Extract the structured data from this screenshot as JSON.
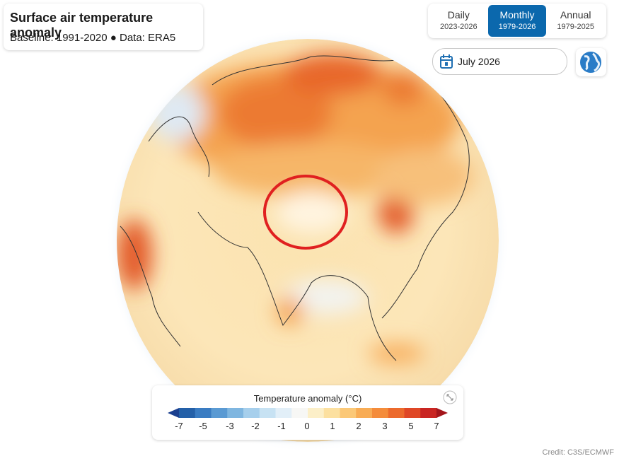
{
  "header": {
    "title": "Surface air temperature anomaly",
    "subtitle": "Baseline: 1991-2020 ● Data: ERA5"
  },
  "tabs": [
    {
      "label": "Daily",
      "range": "2023-2026",
      "selected": false
    },
    {
      "label": "Monthly",
      "range": "1979-2026",
      "selected": true
    },
    {
      "label": "Annual",
      "range": "1979-2025",
      "selected": false
    }
  ],
  "date": "July 2026",
  "legend": {
    "title": "Temperature anomaly (°C)",
    "ticks": [
      -7,
      -5,
      -3,
      -2,
      -1,
      0,
      1,
      2,
      3,
      5,
      7
    ],
    "colors": [
      "#1a3f8f",
      "#2460a8",
      "#3a7cc2",
      "#5a9ad3",
      "#7fb6e0",
      "#a6cfec",
      "#c7e2f3",
      "#e2eff8",
      "#f7f7f5",
      "#fcefc8",
      "#fce0a0",
      "#fbc877",
      "#f8ac55",
      "#f48c3b",
      "#ec6a2c",
      "#df4726",
      "#c92522",
      "#a3151b"
    ]
  },
  "credit": "Credit: C3S/ECMWF"
}
